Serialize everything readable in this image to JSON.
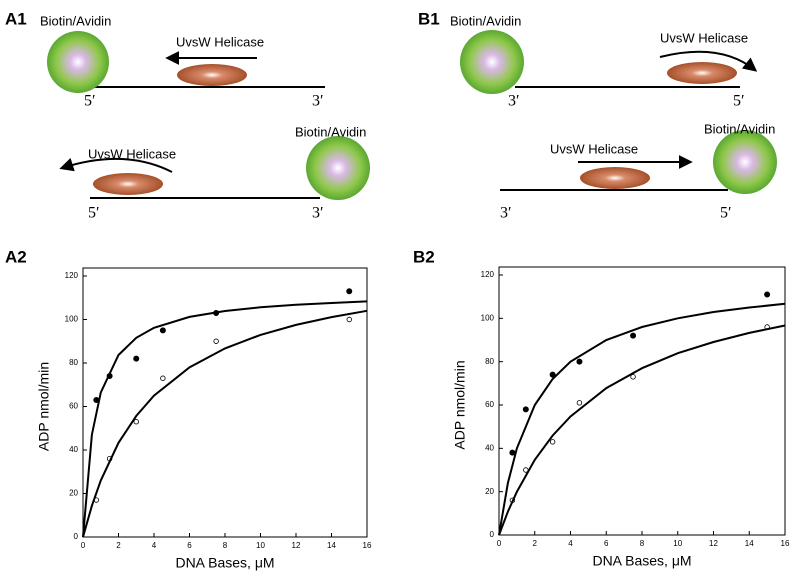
{
  "panel_labels": {
    "a1": "A1",
    "b1": "B1",
    "a2": "A2",
    "b2": "B2"
  },
  "diagram_a1": {
    "top": {
      "bead": "Biotin/Avidin",
      "enzyme": "UvsW Helicase",
      "left_end": "5′",
      "right_end": "3′"
    },
    "bottom": {
      "bead": "Biotin/Avidin",
      "enzyme": "UvsW Helicase",
      "left_end": "5′",
      "right_end": "3′"
    }
  },
  "diagram_b1": {
    "top": {
      "bead": "Biotin/Avidin",
      "enzyme": "UvsW Helicase",
      "left_end": "3′",
      "right_end": "5′"
    },
    "bottom": {
      "bead": "Biotin/Avidin",
      "enzyme": "UvsW Helicase",
      "left_end": "3′",
      "right_end": "5′"
    }
  },
  "chart_data": [
    {
      "type": "scatter",
      "x_label": "DNA Bases, μM",
      "y_label": "ADP nmol/min",
      "xlim": [
        0,
        16
      ],
      "xticks": [
        0,
        2,
        4,
        6,
        8,
        10,
        12,
        14,
        16
      ],
      "ylim": [
        0,
        120
      ],
      "yticks": [
        0,
        20,
        40,
        60,
        80,
        100,
        120
      ],
      "series": [
        {
          "kind": "points",
          "marker": "filled",
          "color": "#000000",
          "x": [
            0.75,
            1.5,
            3,
            4.5,
            7.5,
            15
          ],
          "values": [
            63,
            74,
            82,
            95,
            103,
            113
          ]
        },
        {
          "kind": "points",
          "marker": "open",
          "color": "#000000",
          "x": [
            0.75,
            1.5,
            3,
            4.5,
            7.5,
            15
          ],
          "values": [
            17,
            36,
            53,
            73,
            90,
            100
          ]
        },
        {
          "kind": "line",
          "color": "#000000",
          "x": [
            0,
            0.5,
            1,
            2,
            3,
            4,
            6,
            8,
            10,
            12,
            14,
            16
          ],
          "values": [
            0,
            47.1,
            66.5,
            83.7,
            91.6,
            96.2,
            101.2,
            103.9,
            105.6,
            106.8,
            107.6,
            108.3
          ]
        },
        {
          "kind": "line",
          "color": "#000000",
          "x": [
            0,
            0.5,
            1,
            2,
            3,
            4,
            6,
            8,
            10,
            12,
            14,
            16
          ],
          "values": [
            0,
            14.4,
            26,
            43.3,
            55.7,
            65,
            78,
            86.7,
            92.9,
            97.5,
            101.1,
            104
          ]
        }
      ]
    },
    {
      "type": "scatter",
      "x_label": "DNA Bases, μM",
      "y_label": "ADP nmol/min",
      "xlim": [
        0,
        16
      ],
      "xticks": [
        0,
        2,
        4,
        6,
        8,
        10,
        12,
        14,
        16
      ],
      "ylim": [
        0,
        120
      ],
      "yticks": [
        0,
        20,
        40,
        60,
        80,
        100,
        120
      ],
      "series": [
        {
          "kind": "points",
          "marker": "filled",
          "color": "#000000",
          "x": [
            0.75,
            1.5,
            3,
            4.5,
            7.5,
            15
          ],
          "values": [
            38,
            58,
            74,
            80,
            92,
            111
          ]
        },
        {
          "kind": "points",
          "marker": "open",
          "color": "#000000",
          "x": [
            0.75,
            1.5,
            3,
            4.5,
            7.5,
            15
          ],
          "values": [
            16,
            30,
            43,
            61,
            73,
            96
          ]
        },
        {
          "kind": "line",
          "color": "#000000",
          "x": [
            0,
            0.5,
            1,
            2,
            3,
            4,
            6,
            8,
            10,
            12,
            14,
            16
          ],
          "values": [
            0,
            24,
            40,
            60,
            72,
            80,
            90,
            96,
            100,
            102.9,
            105,
            106.7
          ]
        },
        {
          "kind": "line",
          "color": "#000000",
          "x": [
            0,
            0.5,
            1,
            2,
            3,
            4,
            6,
            8,
            10,
            12,
            14,
            16
          ],
          "values": [
            0,
            10.8,
            20,
            34.7,
            45.9,
            54.7,
            67.8,
            77,
            83.9,
            89.1,
            93.3,
            96.7
          ]
        }
      ]
    }
  ]
}
